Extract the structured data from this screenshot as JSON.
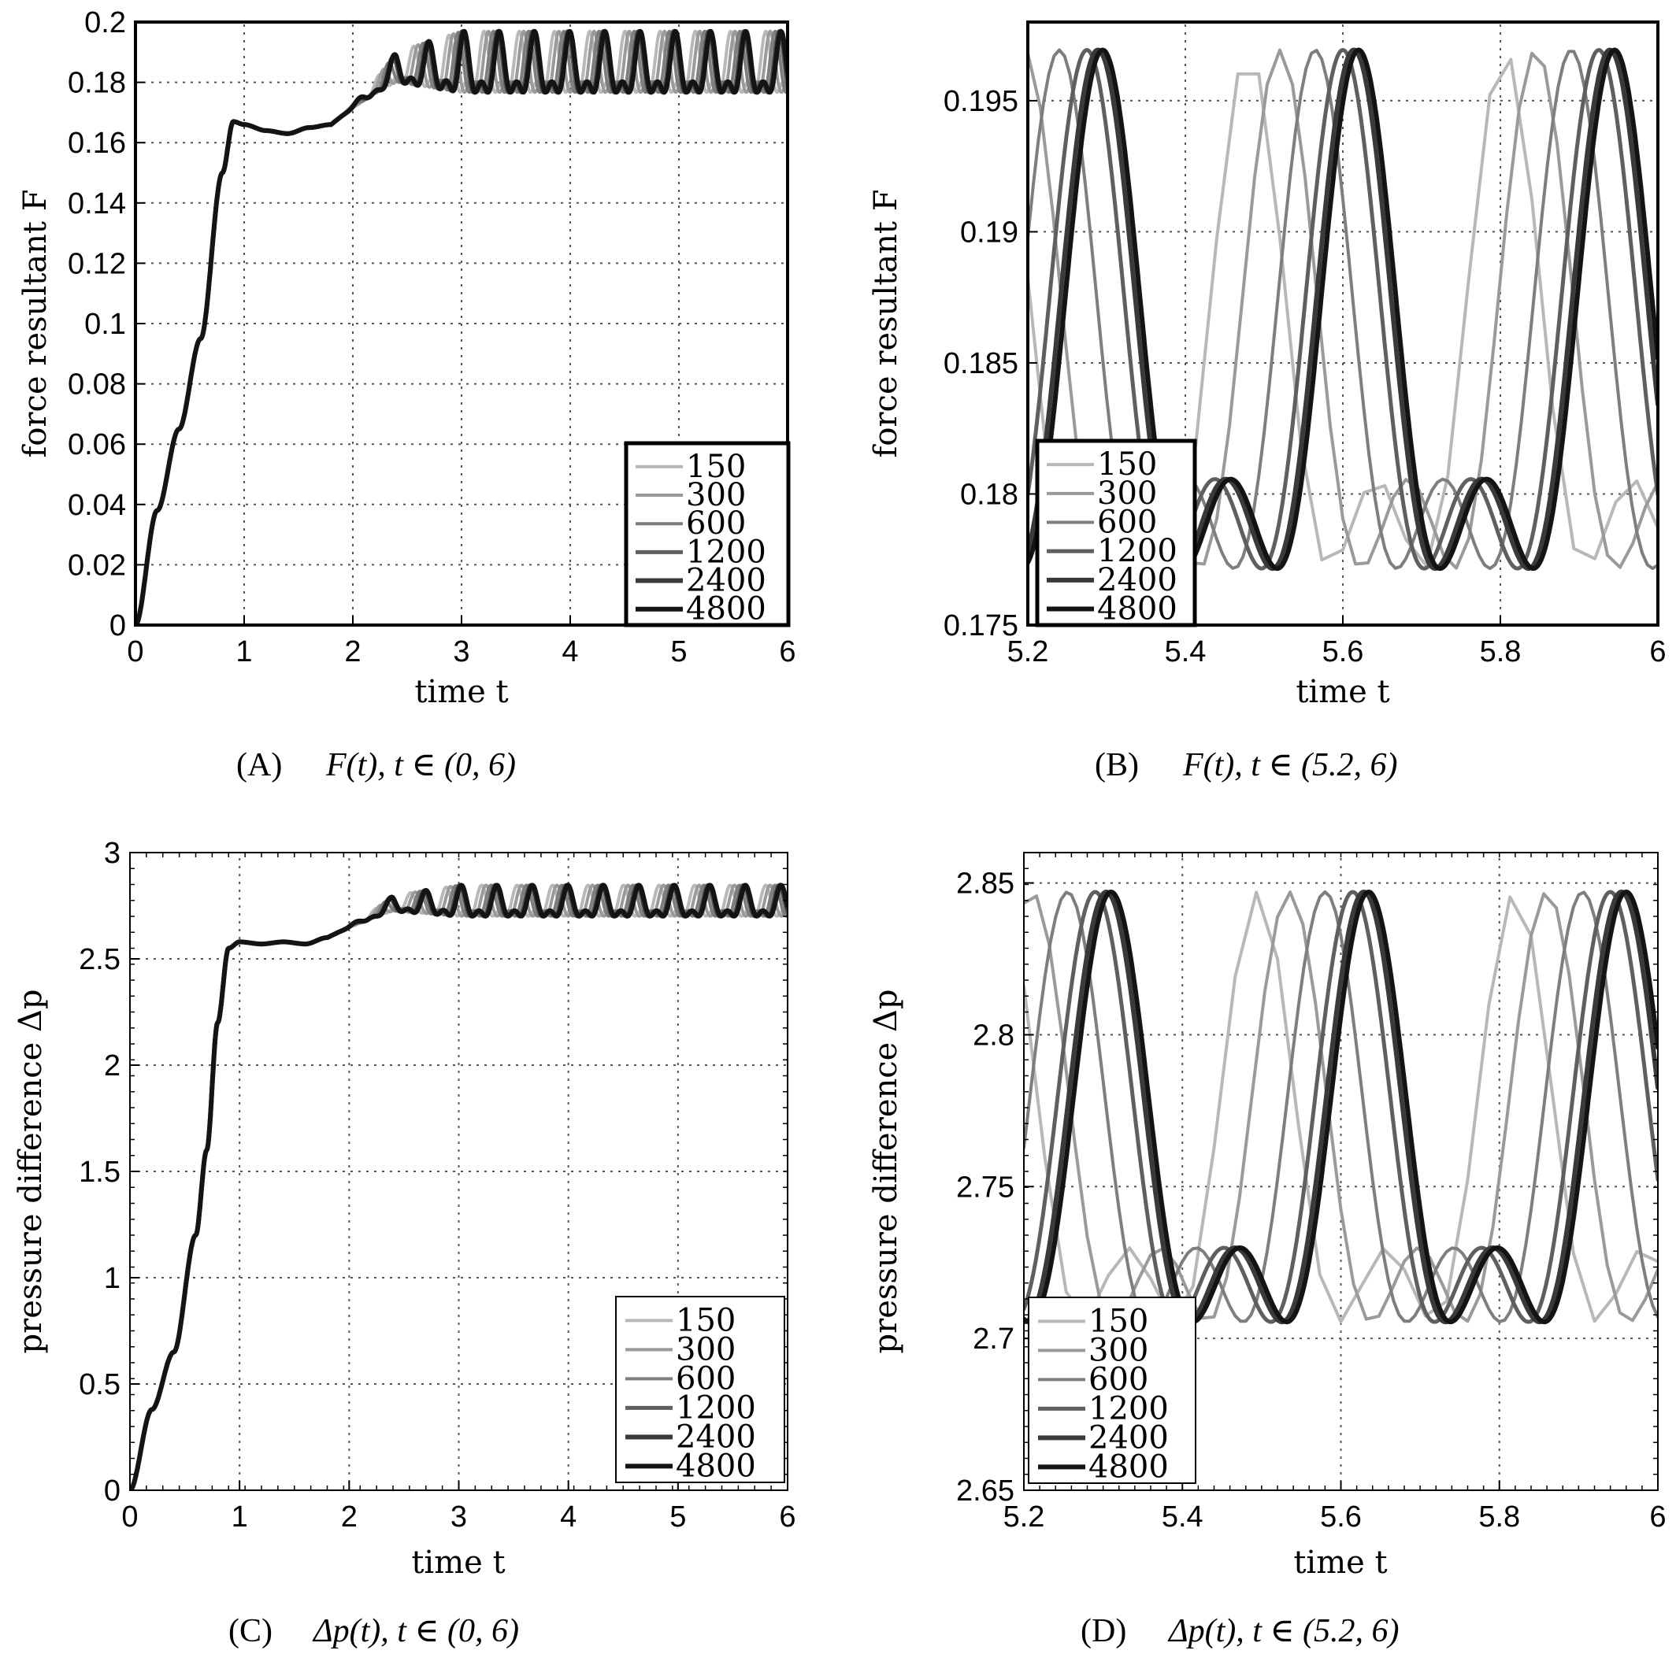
{
  "series_styles": [
    {
      "color": "#b8b8b8",
      "width": 4
    },
    {
      "color": "#9a9a9a",
      "width": 4
    },
    {
      "color": "#7e7e7e",
      "width": 4
    },
    {
      "color": "#5f5f5f",
      "width": 5
    },
    {
      "color": "#3a3a3a",
      "width": 6
    },
    {
      "color": "#141414",
      "width": 6
    }
  ],
  "chart_data": [
    {
      "id": "A",
      "type": "line",
      "caption_label": "(A)",
      "caption_expr": "F(t), t ∈ (0, 6)",
      "xlabel": "time t",
      "ylabel": "force resultant F",
      "xlim": [
        0,
        6
      ],
      "ylim": [
        0,
        0.2
      ],
      "xticks": [
        "0",
        "1",
        "2",
        "3",
        "4",
        "5",
        "6"
      ],
      "yticks": [
        "0",
        "0.02",
        "0.04",
        "0.06",
        "0.08",
        "0.1",
        "0.12",
        "0.14",
        "0.16",
        "0.18",
        "0.2"
      ],
      "grid": "dotted",
      "legend_placement": "bottom-right",
      "series_names": [
        "150",
        "300",
        "600",
        "1200",
        "2400",
        "4800"
      ],
      "ramp": [
        [
          0,
          0
        ],
        [
          0.2,
          0.038
        ],
        [
          0.4,
          0.065
        ],
        [
          0.6,
          0.095
        ],
        [
          0.8,
          0.15
        ],
        [
          0.9,
          0.167
        ],
        [
          1.0,
          0.166
        ],
        [
          1.2,
          0.164
        ],
        [
          1.4,
          0.163
        ],
        [
          1.6,
          0.165
        ],
        [
          1.8,
          0.166
        ]
      ],
      "osc": {
        "base": 0.1835,
        "amp_big": 0.0135,
        "amp_small": 0.0021,
        "period": 0.324,
        "growth_start": 1.8,
        "growth_full": 3.0,
        "phase_shifts": [
          0.14,
          0.1,
          0.055,
          0.02,
          0.006,
          0.0
        ]
      }
    },
    {
      "id": "B",
      "type": "line",
      "caption_label": "(B)",
      "caption_expr": "F(t), t ∈ (5.2, 6)",
      "xlabel": "time t",
      "ylabel": "force resultant F",
      "xlim": [
        5.2,
        6
      ],
      "ylim": [
        0.175,
        0.198
      ],
      "xticks": [
        "5.2",
        "5.4",
        "5.6",
        "5.8",
        "6"
      ],
      "yticks": [
        "0.175",
        "0.18",
        "0.185",
        "0.19",
        "0.195"
      ],
      "grid": "dotted",
      "legend_placement": "bottom-left",
      "series_names": [
        "150",
        "300",
        "600",
        "1200",
        "2400",
        "4800"
      ],
      "peaks_4800": [
        5.295,
        5.62,
        5.945
      ],
      "osc": {
        "base": 0.1838,
        "amp_big": 0.0132,
        "amp_small": 0.0021,
        "period": 0.325,
        "phase_shifts": [
          0.14,
          0.1,
          0.055,
          0.02,
          0.006,
          0.0
        ]
      }
    },
    {
      "id": "C",
      "type": "line",
      "caption_label": "(C)",
      "caption_expr": "Δp(t), t ∈ (0, 6)",
      "xlabel": "time t",
      "ylabel": "pressure difference Δp",
      "xlim": [
        0,
        6
      ],
      "ylim": [
        0,
        3
      ],
      "xticks": [
        "0",
        "1",
        "2",
        "3",
        "4",
        "5",
        "6"
      ],
      "yticks": [
        "0",
        "0.5",
        "1",
        "1.5",
        "2",
        "2.5",
        "3"
      ],
      "grid": "dotted",
      "legend_placement": "bottom-right",
      "series_names": [
        "150",
        "300",
        "600",
        "1200",
        "2400",
        "4800"
      ],
      "ramp": [
        [
          0,
          0
        ],
        [
          0.2,
          0.38
        ],
        [
          0.4,
          0.65
        ],
        [
          0.6,
          1.2
        ],
        [
          0.7,
          1.6
        ],
        [
          0.8,
          2.2
        ],
        [
          0.9,
          2.55
        ],
        [
          1.0,
          2.58
        ],
        [
          1.2,
          2.57
        ],
        [
          1.4,
          2.58
        ],
        [
          1.6,
          2.57
        ],
        [
          1.8,
          2.6
        ]
      ],
      "osc": {
        "base": 2.75,
        "amp_big": 0.097,
        "amp_small": 0.03,
        "period": 0.324,
        "growth_start": 1.8,
        "growth_full": 3.0,
        "phase_shifts": [
          0.14,
          0.1,
          0.055,
          0.02,
          0.006,
          0.0
        ]
      }
    },
    {
      "id": "D",
      "type": "line",
      "caption_label": "(D)",
      "caption_expr": "Δp(t), t ∈ (5.2, 6)",
      "xlabel": "time t",
      "ylabel": "pressure difference Δp",
      "xlim": [
        5.2,
        6
      ],
      "ylim": [
        2.65,
        2.86
      ],
      "xticks": [
        "5.2",
        "5.4",
        "5.6",
        "5.8",
        "6"
      ],
      "yticks": [
        "2.65",
        "2.7",
        "2.75",
        "2.8",
        "2.85"
      ],
      "grid": "dotted",
      "legend_placement": "bottom-left",
      "series_names": [
        "150",
        "300",
        "600",
        "1200",
        "2400",
        "4800"
      ],
      "peaks_4800": [
        5.31,
        5.635,
        5.96
      ],
      "osc": {
        "base": 2.753,
        "amp_big": 0.0945,
        "amp_small": 0.031,
        "period": 0.325,
        "phase_shifts": [
          0.14,
          0.1,
          0.055,
          0.02,
          0.006,
          0.0
        ]
      }
    }
  ]
}
